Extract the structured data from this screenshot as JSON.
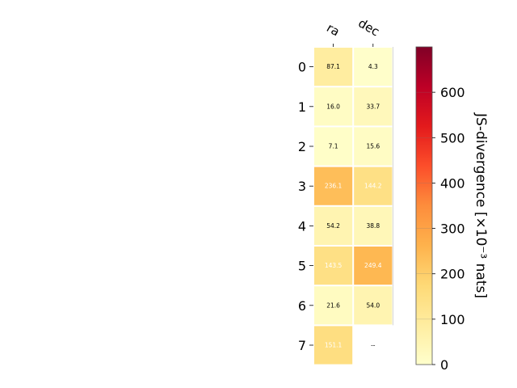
{
  "chart_data": {
    "type": "heatmap",
    "columns": [
      "ra",
      "dec"
    ],
    "rows": [
      "0",
      "1",
      "2",
      "3",
      "4",
      "5",
      "6",
      "7"
    ],
    "values": [
      [
        87.1,
        4.3
      ],
      [
        16.0,
        33.7
      ],
      [
        7.1,
        15.6
      ],
      [
        236.1,
        144.2
      ],
      [
        54.2,
        38.8
      ],
      [
        143.5,
        249.4
      ],
      [
        21.6,
        54.0
      ],
      [
        151.1,
        null
      ]
    ],
    "cell_labels": [
      [
        "87.1",
        "4.3"
      ],
      [
        "16.0",
        "33.7"
      ],
      [
        "7.1",
        "15.6"
      ],
      [
        "236.1",
        "144.2"
      ],
      [
        "54.2",
        "38.8"
      ],
      [
        "143.5",
        "249.4"
      ],
      [
        "21.6",
        "54.0"
      ],
      [
        "151.1",
        "--"
      ]
    ],
    "colorbar": {
      "label": "JS-divergence [×10⁻³ nats]",
      "range": [
        0,
        700
      ],
      "ticks": [
        0,
        100,
        200,
        300,
        400,
        500,
        600
      ],
      "colormap": "YlOrRd",
      "colors": [
        "#ffffcc",
        "#ffeda0",
        "#fed976",
        "#feb24c",
        "#fd8d3c",
        "#fc4e2a",
        "#e31a1c",
        "#bd0026",
        "#800026"
      ]
    },
    "label_threshold": 140,
    "grid": false,
    "legend": "right"
  }
}
